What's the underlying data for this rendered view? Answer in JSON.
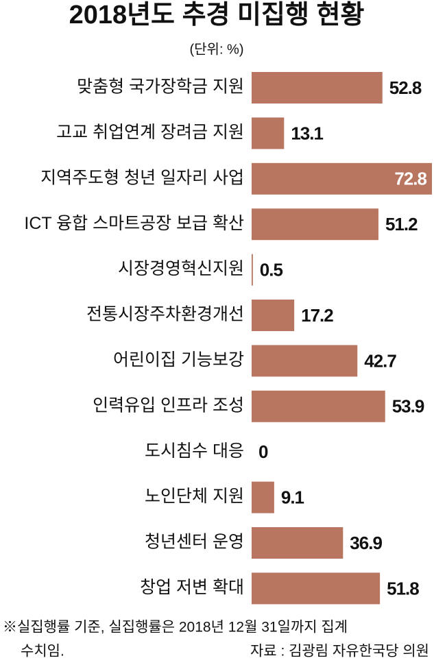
{
  "chart_data": {
    "type": "bar",
    "orientation": "horizontal",
    "title": "2018년도 추경 미집행 현황",
    "subtitle": "(단위: %)",
    "categories": [
      "맞춤형 국가장학금 지원",
      "고교 취업연계 장려금 지원",
      "지역주도형 청년 일자리 사업",
      "ICT 융합 스마트공장 보급 확산",
      "시장경영혁신지원",
      "전통시장주차환경개선",
      "어린이집 기능보강",
      "인력유입 인프라 조성",
      "도시침수 대응",
      "노인단체 지원",
      "청년센터 운영",
      "창업 저변 확대"
    ],
    "values": [
      52.8,
      13.1,
      72.8,
      51.2,
      0.5,
      17.2,
      42.7,
      53.9,
      0,
      9.1,
      36.9,
      51.8
    ],
    "color": "#b87560",
    "note": [
      "※실집행률 기준, 실집행률은 2018년 12월 31일까지 집계",
      "수치임."
    ],
    "source": "자료 : 김광림 자유한국당 의원"
  }
}
